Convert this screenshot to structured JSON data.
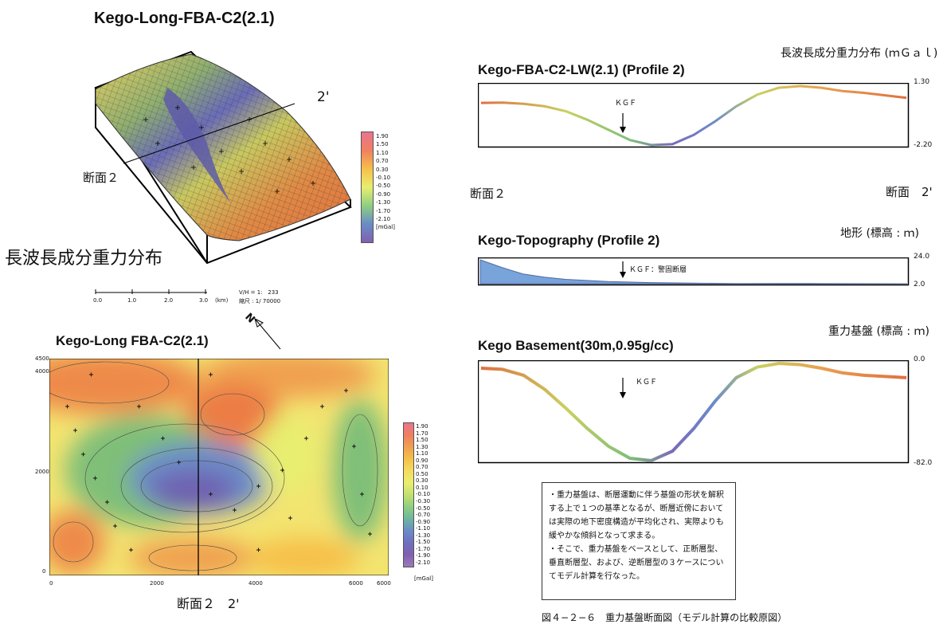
{
  "colors": {
    "scale": [
      "#e9748f",
      "#f08060",
      "#f0a050",
      "#f6c04a",
      "#f4dc60",
      "#e8ee70",
      "#c4e070",
      "#8fcf80",
      "#6db6a0",
      "#6a8cc8",
      "#6f6fc0",
      "#8060b0",
      "#9a7ab8"
    ],
    "frame": "#000000",
    "contour": "#4a4a4a"
  },
  "surface3d": {
    "title": "Kego-Long-FBA-C2(2.1)",
    "section_start": "断面２",
    "section_end": "2'",
    "caption": "長波長成分重力分布",
    "legend_ticks": [
      "1.90",
      "1.50",
      "1.10",
      "0.70",
      "0.30",
      "-0.10",
      "-0.50",
      "-0.90",
      "-1.30",
      "-1.70",
      "-2.10"
    ],
    "legend_unit": "[mGal]",
    "scalebar_ticks": [
      "0.0",
      "1.0",
      "2.0",
      "3.0"
    ],
    "scalebar_unit": "(km)",
    "vh_label": "V/H = 1:",
    "vh_value": "233",
    "scale_label": "縮尺 : 1/",
    "scale_value": "70000"
  },
  "map2d": {
    "title": "Kego-Long FBA-C2(2.1)",
    "north": "N",
    "y_ticks": [
      "4500",
      "4000",
      "2000",
      "0"
    ],
    "x_ticks": [
      "0",
      "2000",
      "4000",
      "6000",
      "6000"
    ],
    "legend_ticks": [
      "1.90",
      "1.70",
      "1.50",
      "1.30",
      "1.10",
      "0.90",
      "0.70",
      "0.50",
      "0.30",
      "0.10",
      "-0.10",
      "-0.30",
      "-0.50",
      "-0.70",
      "-0.90",
      "-1.10",
      "-1.30",
      "-1.50",
      "-1.70",
      "-1.90",
      "-2.10"
    ],
    "legend_unit": "[mGal]",
    "section_label": "断面２　2'"
  },
  "profile_gravity": {
    "title": "Kego-FBA-C2-LW(2.1) (Profile 2)",
    "right_label": "長波長成分重力分布 (ｍＧａｌ)",
    "ymax": "1.30",
    "ymin": "-2.20",
    "marker": "ＫＧＦ",
    "left_section": "断面２",
    "right_section": "断面　2'"
  },
  "profile_topo": {
    "title": "Kego-Topography (Profile 2)",
    "right_label": "地形 (標高 : ｍ)",
    "ymax": "24.0",
    "ymin": "2.0",
    "marker": "ＫＧＦ：警固断層"
  },
  "profile_basement": {
    "title": "Kego Basement(30m,0.95g/cc)",
    "right_label": "重力基盤 (標高 : ｍ)",
    "ymax": "0.0",
    "ymin": "-82.0",
    "marker": "ＫＧＦ"
  },
  "notes": [
    "・重力基盤は、断層運動に伴う基盤の形状を解釈する上で１つの基準となるが、断層近傍においては実際の地下密度構造が平均化され、実際よりも緩やかな傾斜となって求まる。",
    "・そこで、重力基盤をベースとして、正断層型、垂直断層型、および、逆断層型の３ケースについてモデル計算を行なった。"
  ],
  "figure_caption": "図４−２−６　重力基盤断面図（モデル計算の比較原図）",
  "chart_data": [
    {
      "type": "line",
      "title": "Kego-FBA-C2-LW(2.1) (Profile 2)",
      "ylabel": "長波長成分重力分布 (ｍＧａｌ)",
      "ylim": [
        -2.2,
        1.3
      ],
      "x": [
        0,
        0.05,
        0.1,
        0.15,
        0.2,
        0.25,
        0.3,
        0.35,
        0.4,
        0.45,
        0.5,
        0.55,
        0.6,
        0.65,
        0.7,
        0.75,
        0.8,
        0.85,
        0.9,
        0.95,
        1.0
      ],
      "series": [
        {
          "values": [
            0.3,
            0.32,
            0.25,
            0.1,
            -0.2,
            -0.7,
            -1.3,
            -1.9,
            -2.2,
            -2.15,
            -1.6,
            -0.8,
            0.1,
            0.8,
            1.2,
            1.3,
            1.2,
            1.0,
            0.9,
            0.75,
            0.6
          ]
        }
      ],
      "annotations": [
        "ＫＧＦ"
      ]
    },
    {
      "type": "area",
      "title": "Kego-Topography (Profile 2)",
      "ylabel": "地形 (標高 : ｍ)",
      "ylim": [
        2.0,
        24.0
      ],
      "x": [
        0,
        0.05,
        0.1,
        0.15,
        0.2,
        0.25,
        0.3,
        0.4,
        0.5,
        0.6,
        0.7,
        0.8,
        0.9,
        1.0
      ],
      "series": [
        {
          "values": [
            24.0,
            17.0,
            11.0,
            8.0,
            6.0,
            5.0,
            4.0,
            3.0,
            2.5,
            2.2,
            2.3,
            2.2,
            2.1,
            2.0
          ]
        }
      ],
      "annotations": [
        "ＫＧＦ：警固断層"
      ]
    },
    {
      "type": "line",
      "title": "Kego Basement(30m,0.95g/cc)",
      "ylabel": "重力基盤 (標高 : ｍ)",
      "ylim": [
        -82.0,
        0.0
      ],
      "x": [
        0,
        0.05,
        0.1,
        0.15,
        0.2,
        0.25,
        0.3,
        0.35,
        0.4,
        0.45,
        0.5,
        0.55,
        0.6,
        0.65,
        0.7,
        0.75,
        0.8,
        0.85,
        0.9,
        0.95,
        1.0
      ],
      "series": [
        {
          "values": [
            -4,
            -5,
            -10,
            -22,
            -38,
            -55,
            -70,
            -80,
            -82,
            -74,
            -55,
            -32,
            -12,
            -3,
            0,
            -1,
            -4,
            -8,
            -10,
            -11,
            -12
          ]
        }
      ],
      "annotations": [
        "ＫＧＦ"
      ]
    }
  ]
}
